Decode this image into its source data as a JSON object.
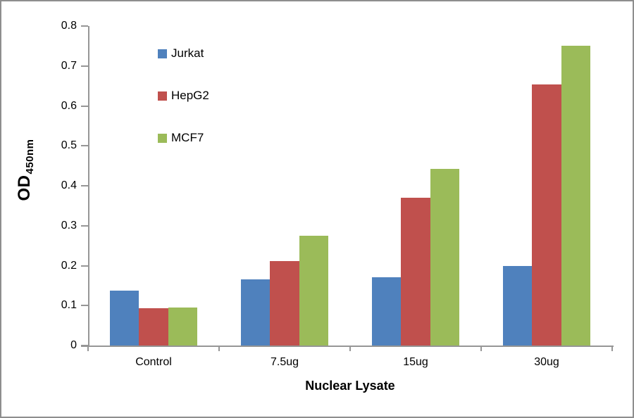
{
  "chart_data": {
    "type": "bar",
    "categories": [
      "Control",
      "7.5ug",
      "15ug",
      "30ug"
    ],
    "series": [
      {
        "name": "Jurkat",
        "color": "#4F81BD",
        "values": [
          0.138,
          0.165,
          0.171,
          0.2
        ]
      },
      {
        "name": "HepG2",
        "color": "#C0504D",
        "values": [
          0.093,
          0.212,
          0.37,
          0.654
        ]
      },
      {
        "name": "MCF7",
        "color": "#9BBB59",
        "values": [
          0.096,
          0.275,
          0.442,
          0.751
        ]
      }
    ],
    "title": "",
    "xlabel": "Nuclear Lysate",
    "ylabel": "OD",
    "ylabel_subscript": "450nm",
    "ylim": [
      0,
      0.8
    ],
    "ytick_step": 0.1,
    "ytick_labels": [
      "0.8",
      "0.7",
      "0.6",
      "0.5",
      "0.4",
      "0.3",
      "0.2",
      "0.1",
      "0"
    ],
    "grid": false,
    "legend_position": "inside-upper-left"
  },
  "colors": {
    "axis": "#969696",
    "frame_border": "#8E8E8E",
    "background": "#FFFFFF",
    "text": "#000000"
  }
}
